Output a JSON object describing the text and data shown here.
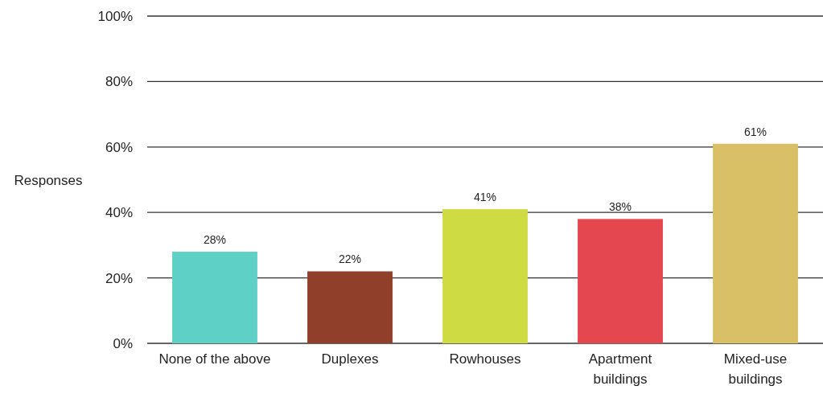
{
  "chart_data": {
    "type": "bar",
    "ylabel": "Responses",
    "categories": [
      "None of the above",
      "Duplexes",
      "Rowhouses",
      "Apartment buildings",
      "Mixed-use buildings"
    ],
    "values": [
      28,
      22,
      41,
      38,
      61
    ],
    "colors": [
      "#5fd0c5",
      "#8f3f2a",
      "#cfdb43",
      "#e5474f",
      "#d9c066"
    ],
    "value_labels": [
      "28%",
      "22%",
      "41%",
      "38%",
      "61%"
    ],
    "ylim": [
      0,
      100
    ],
    "yticks": [
      {
        "value": 0,
        "label": "0%"
      },
      {
        "value": 20,
        "label": "20%"
      },
      {
        "value": 40,
        "label": "40%"
      },
      {
        "value": 60,
        "label": "60%"
      },
      {
        "value": 80,
        "label": "80%"
      },
      {
        "value": 100,
        "label": "100%"
      }
    ],
    "grid": "y"
  }
}
